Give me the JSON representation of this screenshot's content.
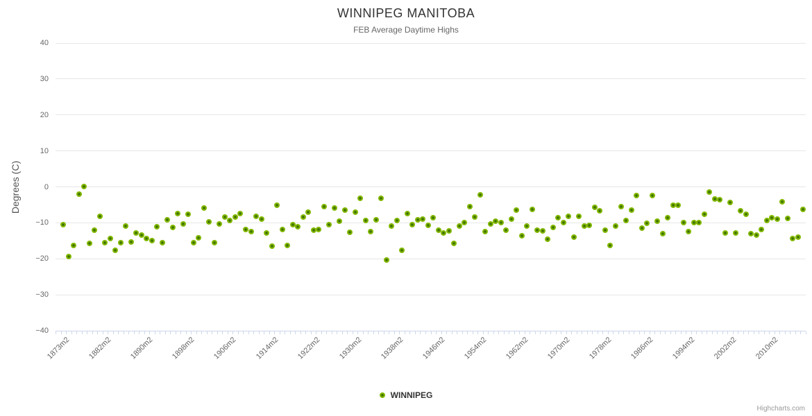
{
  "chart_data": {
    "type": "scatter",
    "title": "WINNIPEG MANITOBA",
    "subtitle": "FEB Average Daytime Highs",
    "ylabel": "Degrees (C)",
    "ylim": [
      -40,
      40
    ],
    "grid": "horizontal-only",
    "legend_position": "bottom-center",
    "credits": "Highcharts.com",
    "yticks": [
      {
        "value": 40,
        "label": "40"
      },
      {
        "value": 30,
        "label": "30"
      },
      {
        "value": 20,
        "label": "20"
      },
      {
        "value": 10,
        "label": "10"
      },
      {
        "value": 0,
        "label": "0"
      },
      {
        "value": -10,
        "label": "−10"
      },
      {
        "value": -20,
        "label": "−20"
      },
      {
        "value": -30,
        "label": "−30"
      },
      {
        "value": -40,
        "label": "−40"
      }
    ],
    "x_tick_labels": [
      "1873m2",
      "1882m2",
      "1890m2",
      "1898m2",
      "1906m2",
      "1914m2",
      "1922m2",
      "1930m2",
      "1938m2",
      "1946m2",
      "1954m2",
      "1962m2",
      "1970m2",
      "1978m2",
      "1986m2",
      "1994m2",
      "2002m2",
      "2010m2"
    ],
    "x_tick_start_slot": 1,
    "x_tick_slot_step": 8,
    "num_slots": 144,
    "colors": {
      "title": "#333333",
      "subtitle": "#666666",
      "axis_label": "#666666",
      "axis_title": "#555555",
      "gridline": "#e6e6e6",
      "axis_line": "#ccd6eb",
      "marker_outer": "#82b800",
      "marker_inner": "#3f7100",
      "legend_text": "#333333",
      "credits": "#999999"
    },
    "series": [
      {
        "name": "WINNIPEG",
        "values": [
          null,
          -10.5,
          -19.4,
          -16.3,
          -2.1,
          0.1,
          -15.8,
          -12.0,
          -8.2,
          -15.6,
          -14.4,
          -17.6,
          -15.5,
          -10.9,
          -15.4,
          -12.8,
          -13.4,
          -14.3,
          -15.0,
          -11.0,
          -15.5,
          -9.2,
          -11.3,
          -7.4,
          -10.4,
          -7.7,
          -15.5,
          -14.1,
          -5.9,
          -9.8,
          -15.5,
          -10.4,
          -8.4,
          -9.3,
          -8.4,
          -7.5,
          -11.8,
          -12.4,
          -8.2,
          -9.0,
          -12.9,
          -16.5,
          -5.1,
          -11.8,
          -16.3,
          -10.5,
          -11.0,
          -8.3,
          -7.0,
          -12.0,
          -11.9,
          -5.4,
          -10.6,
          -5.8,
          -9.5,
          -6.5,
          -12.7,
          -7.0,
          -3.1,
          -9.3,
          -12.5,
          -9.2,
          -3.2,
          -20.4,
          -10.9,
          -9.4,
          -17.6,
          -7.4,
          -10.5,
          -9.1,
          -9.0,
          -10.7,
          -8.6,
          -12.0,
          -12.8,
          -12.3,
          -15.8,
          -10.9,
          -9.9,
          -5.4,
          -8.4,
          -2.2,
          -12.4,
          -10.4,
          -9.5,
          -9.9,
          -12.0,
          -8.9,
          -6.5,
          -13.6,
          -10.9,
          -6.2,
          -12.1,
          -12.3,
          -14.5,
          -11.3,
          -8.6,
          -9.9,
          -8.1,
          -14.0,
          -8.1,
          -10.8,
          -10.7,
          -5.7,
          -6.7,
          -12.1,
          -16.3,
          -10.9,
          -5.4,
          -9.4,
          -6.4,
          -2.5,
          -11.5,
          -10.2,
          -2.5,
          -9.5,
          -13.1,
          -8.5,
          -5.1,
          -5.1,
          -10.0,
          -12.5,
          -9.9,
          -9.9,
          -7.6,
          -1.4,
          -3.3,
          -3.5,
          -12.8,
          -4.4,
          -12.8,
          -6.7,
          -7.7,
          -13.1,
          -13.4,
          -11.8,
          -9.4,
          -8.6,
          -8.9,
          -4.1,
          -8.8,
          -14.4,
          -13.9,
          -6.2
        ]
      }
    ]
  }
}
